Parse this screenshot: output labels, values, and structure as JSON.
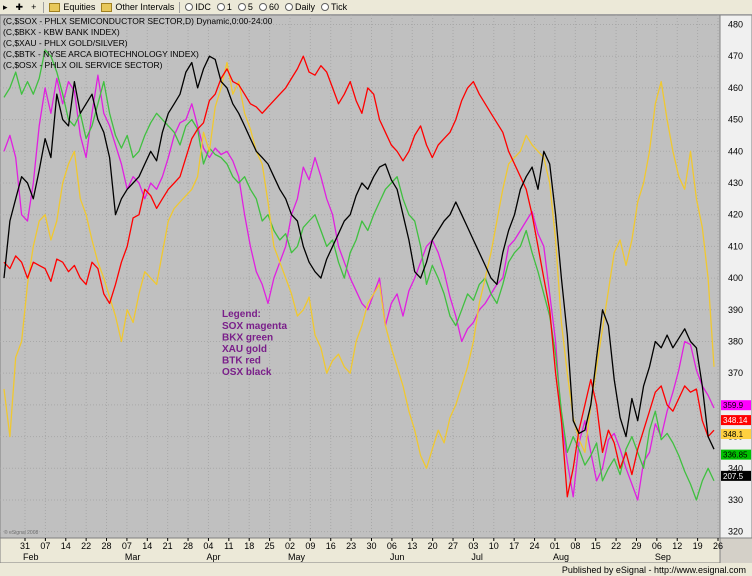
{
  "toolbar": {
    "items": [
      {
        "icon": "pointer-icon",
        "label": ""
      },
      {
        "icon": "crosshair-icon",
        "label": ""
      },
      {
        "icon": "plus-icon",
        "label": ""
      },
      {
        "icon": "folder-icon",
        "label": "Equities"
      },
      {
        "icon": "folder-icon",
        "label": "Other Intervals"
      },
      {
        "icon": "radio-icon",
        "label": "IDC"
      },
      {
        "icon": "radio-icon",
        "label": "1"
      },
      {
        "icon": "radio-icon",
        "label": "5"
      },
      {
        "icon": "radio-icon",
        "label": "60"
      },
      {
        "icon": "radio-icon",
        "label": "Daily"
      },
      {
        "icon": "radio-icon",
        "label": "Tick"
      }
    ]
  },
  "header_lines": [
    "(C,$SOX - PHLX SEMICONDUCTOR SECTOR,D) Dynamic,0:00-24:00",
    "(C,$BKX - KBW BANK INDEX)",
    "(C,$XAU - PHLX GOLD/SILVER)",
    "(C,$BTK - NYSE ARCA BIOTECHNOLOGY INDEX)",
    "(C,$OSX - PHLX OIL SERVICE SECTOR)"
  ],
  "legend": {
    "title": "Legend:",
    "entries": [
      "SOX magenta",
      "BKX green",
      "XAU gold",
      "BTK red",
      "OSX black"
    ],
    "color": "#7a1f8a"
  },
  "watermark": "© eSignal 2008",
  "footer": "Published by eSignal - http://www.esignal.com",
  "chart_data": {
    "type": "line",
    "background": "#c0c0c0",
    "grid": true,
    "ylim": [
      318,
      483
    ],
    "y_ticks": [
      320,
      330,
      340,
      350,
      360,
      370,
      380,
      390,
      400,
      410,
      420,
      430,
      440,
      450,
      460,
      470,
      480
    ],
    "x_ticks": [
      "31",
      "07",
      "14",
      "22",
      "28",
      "07",
      "14",
      "21",
      "28",
      "04",
      "11",
      "18",
      "25",
      "02",
      "09",
      "16",
      "23",
      "30",
      "06",
      "13",
      "20",
      "27",
      "03",
      "10",
      "17",
      "24",
      "01",
      "08",
      "15",
      "22",
      "29",
      "06",
      "12",
      "19",
      "26"
    ],
    "month_labels": [
      {
        "label": "Feb",
        "at_tick": 0
      },
      {
        "label": "Mar",
        "at_tick": 5
      },
      {
        "label": "Apr",
        "at_tick": 9
      },
      {
        "label": "May",
        "at_tick": 13
      },
      {
        "label": "Jun",
        "at_tick": 18
      },
      {
        "label": "Jul",
        "at_tick": 22
      },
      {
        "label": "Aug",
        "at_tick": 26
      },
      {
        "label": "Sep",
        "at_tick": 31
      }
    ],
    "last_values": [
      {
        "text": "359.9",
        "color": "#ff00ff",
        "y": 359.9
      },
      {
        "text": "348.14",
        "color": "#ff0000",
        "y": 355.2
      },
      {
        "text": "348.1",
        "color": "#ffd040",
        "y": 350.8
      },
      {
        "text": "336.85",
        "color": "#00c000",
        "y": 344.3
      },
      {
        "text": "207.5",
        "color": "#000000",
        "y": 337.6
      }
    ],
    "series": [
      {
        "color": "#e020e0",
        "key": "sox",
        "values": [
          440,
          445,
          438,
          420,
          418,
          430,
          448,
          460,
          452,
          463,
          455,
          462,
          459,
          445,
          438,
          452,
          464,
          452,
          448,
          442,
          436,
          428,
          432,
          430,
          425,
          430,
          428,
          432,
          438,
          445,
          449,
          450,
          455,
          448,
          441,
          438,
          441,
          439,
          440,
          437,
          432,
          420,
          410,
          402,
          398,
          392,
          400,
          405,
          410,
          420,
          425,
          435,
          431,
          438,
          432,
          425,
          420,
          410,
          405,
          400,
          396,
          392,
          390,
          395,
          400,
          385,
          392,
          395,
          388,
          396,
          400,
          405,
          410,
          412,
          408,
          402,
          394,
          388,
          380,
          384,
          386,
          390,
          392,
          395,
          398,
          400,
          410,
          412,
          415,
          418,
          421,
          414,
          410,
          395,
          380,
          355,
          342,
          331,
          348,
          355,
          345,
          336,
          340,
          349,
          351,
          346,
          340,
          335,
          330,
          342,
          345,
          354,
          350,
          358,
          364,
          371,
          380,
          379,
          371,
          366,
          363,
          359
        ]
      },
      {
        "color": "#40c040",
        "key": "bkx",
        "values": [
          457,
          460,
          465,
          458,
          462,
          458,
          463,
          472,
          470,
          465,
          458,
          450,
          448,
          452,
          444,
          448,
          455,
          462,
          452,
          445,
          441,
          445,
          438,
          440,
          445,
          449,
          452,
          450,
          448,
          446,
          442,
          448,
          450,
          447,
          436,
          441,
          439,
          438,
          436,
          432,
          430,
          432,
          428,
          425,
          418,
          420,
          415,
          412,
          414,
          408,
          410,
          416,
          418,
          420,
          415,
          410,
          412,
          405,
          400,
          408,
          412,
          418,
          415,
          420,
          424,
          428,
          430,
          432,
          425,
          420,
          418,
          410,
          398,
          404,
          400,
          395,
          388,
          385,
          390,
          395,
          393,
          398,
          400,
          395,
          392,
          398,
          405,
          408,
          410,
          415,
          408,
          402,
          395,
          388,
          376,
          358,
          345,
          350,
          346,
          341,
          344,
          348,
          336,
          340,
          343,
          338,
          346,
          350,
          345,
          340,
          352,
          358,
          349,
          351,
          348,
          344,
          339,
          335,
          330,
          336,
          340,
          336
        ]
      },
      {
        "color": "#f0c830",
        "key": "xau",
        "values": [
          365,
          350,
          375,
          380,
          398,
          410,
          418,
          420,
          412,
          418,
          430,
          436,
          440,
          425,
          420,
          412,
          405,
          400,
          394,
          388,
          380,
          390,
          386,
          395,
          402,
          400,
          398,
          408,
          418,
          422,
          424,
          426,
          428,
          432,
          446,
          440,
          454,
          460,
          468,
          458,
          462,
          452,
          447,
          440,
          436,
          424,
          410,
          405,
          400,
          395,
          388,
          390,
          394,
          382,
          378,
          370,
          374,
          376,
          372,
          370,
          380,
          385,
          392,
          395,
          398,
          385,
          378,
          372,
          366,
          358,
          352,
          344,
          340,
          346,
          352,
          348,
          356,
          360,
          366,
          372,
          380,
          392,
          400,
          408,
          418,
          428,
          436,
          438,
          440,
          445,
          442,
          440,
          438,
          430,
          412,
          386,
          370,
          356,
          349,
          345,
          360,
          372,
          384,
          396,
          408,
          412,
          404,
          412,
          424,
          430,
          440,
          455,
          462,
          450,
          440,
          432,
          428,
          440,
          425,
          416,
          400,
          372
        ]
      },
      {
        "color": "#ff0000",
        "key": "btk",
        "values": [
          405,
          403,
          407,
          405,
          400,
          405,
          404,
          403,
          399,
          406,
          405,
          402,
          404,
          400,
          398,
          405,
          403,
          395,
          392,
          398,
          405,
          410,
          419,
          420,
          428,
          426,
          422,
          425,
          428,
          430,
          432,
          438,
          444,
          447,
          449,
          456,
          458,
          463,
          466,
          462,
          461,
          458,
          455,
          454,
          452,
          454,
          456,
          458,
          460,
          463,
          466,
          470,
          465,
          464,
          467,
          465,
          460,
          455,
          458,
          462,
          456,
          452,
          460,
          458,
          450,
          446,
          442,
          440,
          437,
          440,
          445,
          448,
          442,
          438,
          442,
          444,
          446,
          450,
          456,
          460,
          462,
          458,
          455,
          452,
          449,
          446,
          440,
          436,
          432,
          428,
          420,
          410,
          400,
          390,
          370,
          355,
          331,
          340,
          352,
          360,
          368,
          360,
          345,
          352,
          348,
          340,
          345,
          338,
          346,
          352,
          358,
          364,
          366,
          360,
          358,
          362,
          366,
          364,
          365,
          355,
          350,
          352
        ]
      },
      {
        "color": "#000000",
        "key": "osx",
        "values": [
          400,
          418,
          425,
          432,
          430,
          425,
          434,
          444,
          438,
          458,
          450,
          448,
          462,
          452,
          455,
          458,
          450,
          446,
          438,
          420,
          425,
          428,
          430,
          432,
          436,
          440,
          437,
          446,
          452,
          455,
          458,
          465,
          468,
          460,
          466,
          470,
          469,
          462,
          460,
          455,
          452,
          448,
          444,
          440,
          438,
          436,
          432,
          428,
          425,
          420,
          418,
          410,
          405,
          402,
          400,
          406,
          410,
          414,
          418,
          420,
          426,
          430,
          428,
          432,
          435,
          436,
          431,
          428,
          420,
          412,
          402,
          400,
          405,
          412,
          415,
          418,
          420,
          424,
          420,
          416,
          412,
          408,
          404,
          400,
          398,
          408,
          415,
          420,
          428,
          432,
          435,
          428,
          440,
          436,
          420,
          400,
          382,
          355,
          351,
          352,
          360,
          375,
          390,
          385,
          368,
          356,
          350,
          362,
          355,
          366,
          372,
          380,
          378,
          382,
          378,
          381,
          384,
          380,
          378,
          366,
          350,
          346
        ]
      }
    ]
  }
}
